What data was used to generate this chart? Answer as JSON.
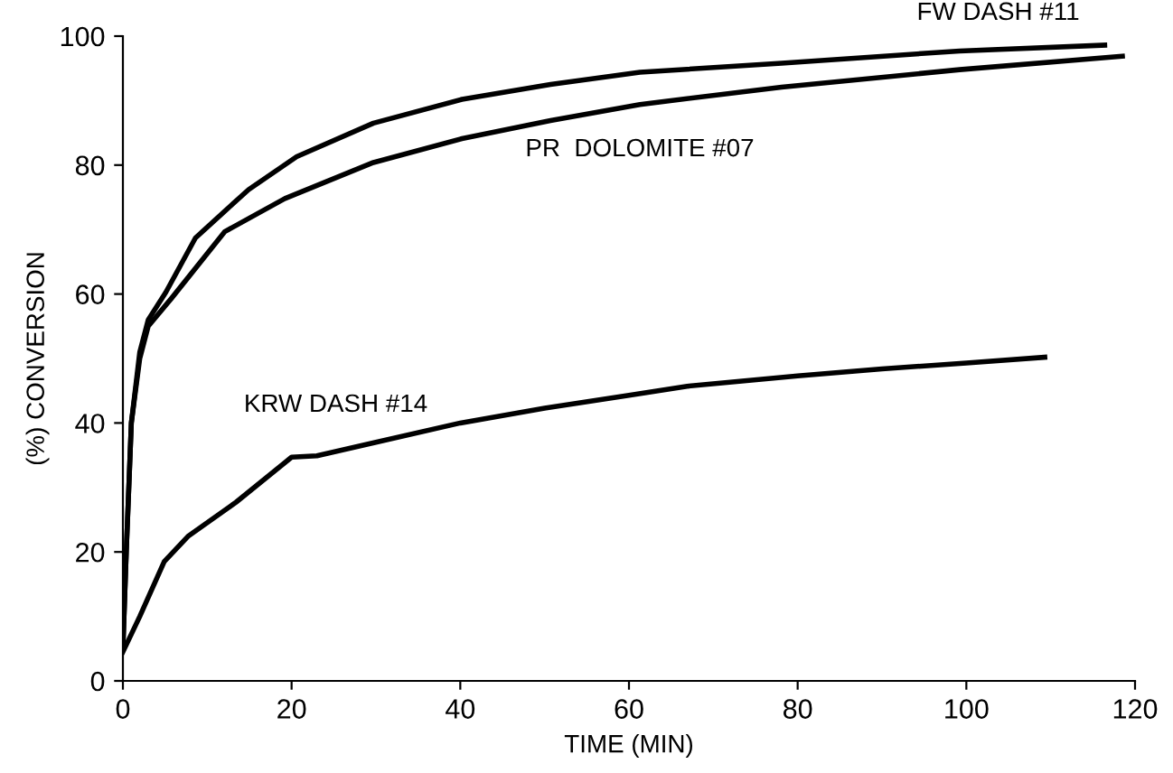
{
  "chart_data": {
    "type": "line",
    "xlabel": "TIME (MIN)",
    "ylabel": "(%) CONVERSION",
    "xlim": [
      0,
      120
    ],
    "ylim": [
      0,
      100
    ],
    "xticks": [
      0,
      20,
      40,
      60,
      80,
      100,
      120
    ],
    "yticks": [
      0,
      20,
      40,
      60,
      80,
      100
    ],
    "grid": false,
    "legend": false,
    "marker": "none",
    "line_style": "solid",
    "series": [
      {
        "name": "FW DASH #11",
        "color": "#000000",
        "x": [
          0,
          0.4,
          1,
          2,
          3,
          5.1,
          8.6,
          14.9,
          20.6,
          29.7,
          40.2,
          50.7,
          61.3,
          78.1,
          99.2,
          116.4
        ],
        "values": [
          5,
          20,
          40,
          51,
          56,
          60.3,
          68.7,
          76.2,
          81.3,
          86.5,
          90.2,
          92.5,
          94.4,
          95.8,
          97.7,
          98.6
        ]
      },
      {
        "name": "PR  DOLOMITE #07",
        "color": "#000000",
        "x": [
          0,
          0.4,
          1,
          2,
          3,
          5.8,
          12.1,
          19.2,
          29.7,
          40.2,
          50.7,
          61.3,
          78.1,
          99.2,
          118.5
        ],
        "values": [
          5,
          20,
          40,
          50,
          55,
          59.4,
          69.7,
          74.8,
          80.4,
          84.1,
          86.9,
          89.4,
          92.1,
          94.8,
          96.9
        ]
      },
      {
        "name": "KRW DASH #14",
        "color": "#000000",
        "x": [
          0,
          2,
          4.9,
          7.7,
          13.4,
          20,
          23,
          30,
          40,
          50,
          60,
          66.9,
          80,
          90,
          100,
          109.3
        ],
        "values": [
          4.5,
          10,
          18.5,
          22.4,
          27.7,
          34.7,
          34.9,
          37,
          40,
          42.3,
          44.3,
          45.7,
          47.3,
          48.4,
          49.3,
          50.2
        ]
      }
    ]
  }
}
